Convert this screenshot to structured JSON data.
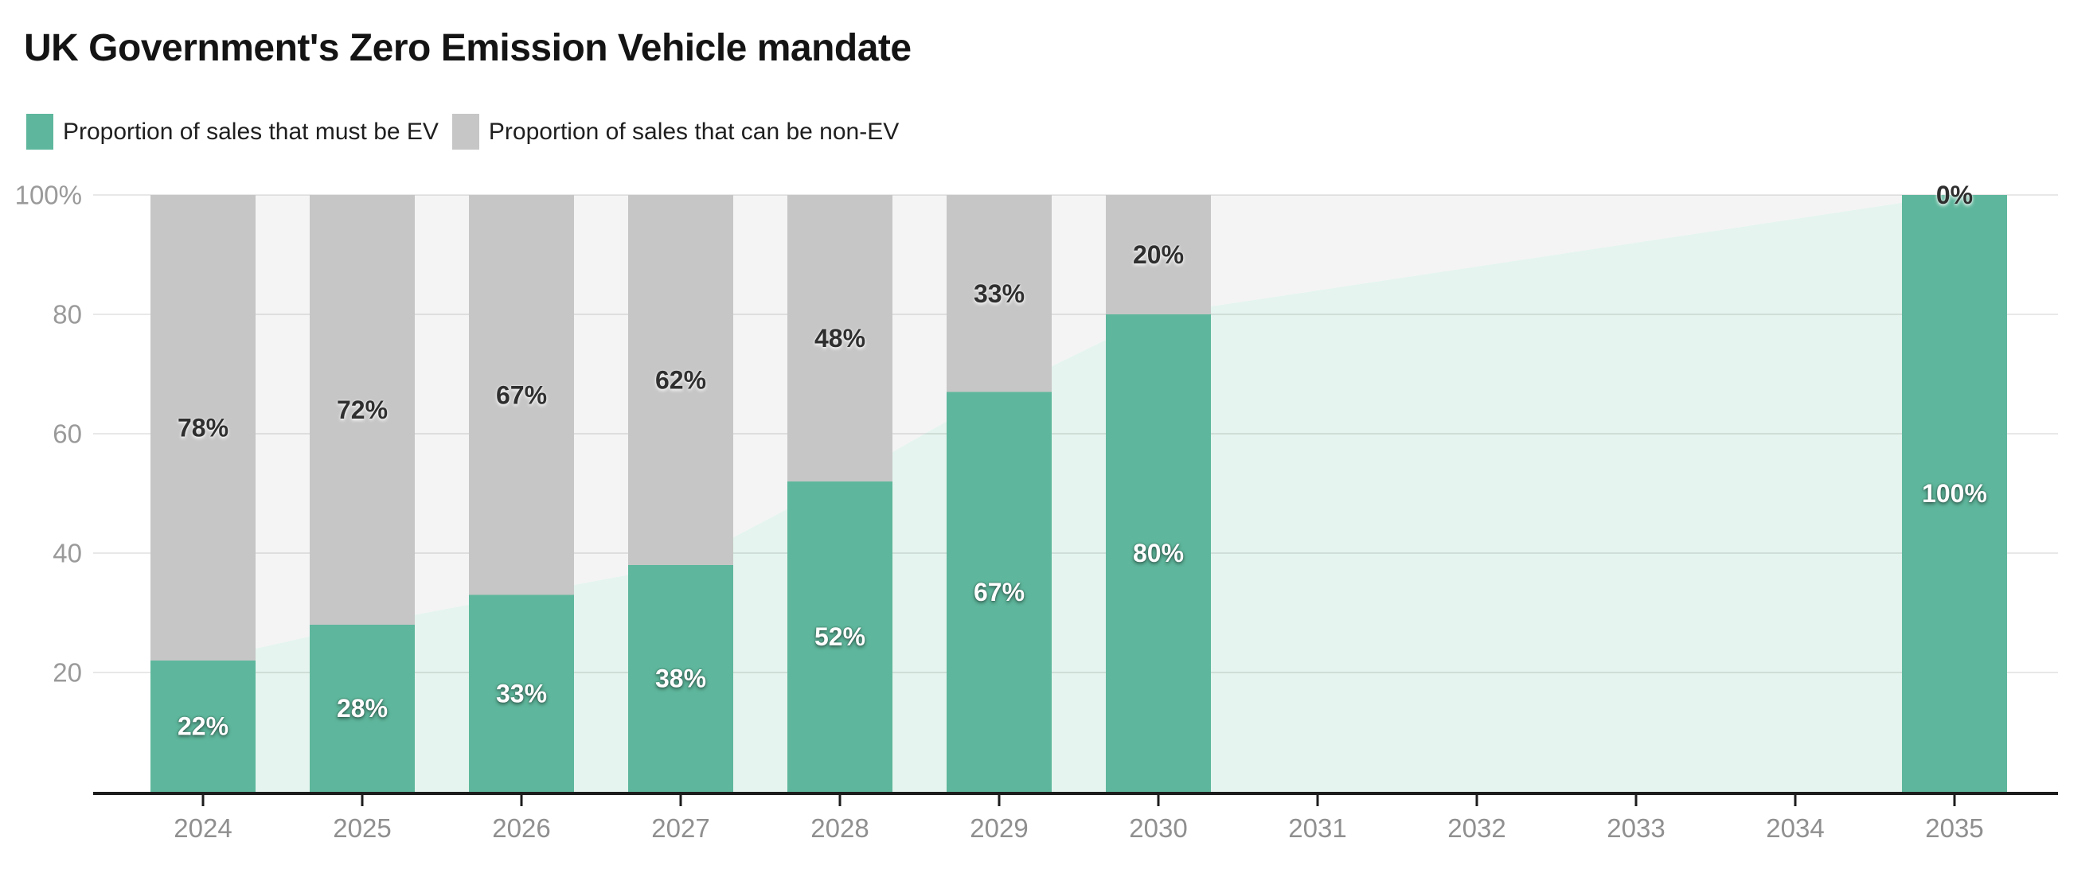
{
  "header": {
    "title": "UK Government's Zero Emission Vehicle mandate"
  },
  "legend": {
    "position": "top-left",
    "items": [
      {
        "label": "Proportion of sales that must be EV",
        "color": "#5EB79C"
      },
      {
        "label": "Proportion of sales that can be non-EV",
        "color": "#C6C6C6"
      }
    ]
  },
  "chart_data": {
    "type": "bar",
    "stacked": true,
    "units": "%",
    "title": "UK Government's Zero Emission Vehicle mandate",
    "categories": [
      "2024",
      "2025",
      "2026",
      "2027",
      "2028",
      "2029",
      "2030",
      "2031",
      "2032",
      "2033",
      "2034",
      "2035"
    ],
    "series": [
      {
        "name": "Proportion of sales that must be EV",
        "color": "#5EB79C",
        "values": [
          22,
          28,
          33,
          38,
          52,
          67,
          80,
          null,
          null,
          null,
          null,
          100
        ]
      },
      {
        "name": "Proportion of sales that can be non-EV",
        "color": "#C6C6C6",
        "values": [
          78,
          72,
          67,
          62,
          48,
          33,
          20,
          null,
          null,
          null,
          null,
          0
        ]
      }
    ],
    "bar_label_format": "{value}%",
    "area_trend": {
      "ev_values": [
        22,
        28,
        33,
        38,
        52,
        67,
        80,
        84,
        88,
        92,
        96,
        100
      ],
      "ev_fill": "#E5F4EE",
      "non_ev_fill": "#F4F4F5"
    },
    "y_axis": {
      "range": [
        0,
        100
      ],
      "grid": true,
      "ticks": [
        {
          "value": 100,
          "label": "100%"
        },
        {
          "value": 80,
          "label": "80"
        },
        {
          "value": 60,
          "label": "60"
        },
        {
          "value": 40,
          "label": "40"
        },
        {
          "value": 20,
          "label": "20"
        }
      ]
    },
    "x_axis": {
      "labels": [
        "2024",
        "2025",
        "2026",
        "2027",
        "2028",
        "2029",
        "2030",
        "2031",
        "2032",
        "2033",
        "2034",
        "2035"
      ]
    },
    "colors": {
      "ev_bar": "#5EB79C",
      "non_ev_bar": "#C6C6C6",
      "ev_area": "#E5F4EE",
      "non_ev_area": "#F4F4F5",
      "gridline": "#E0E0E0",
      "axis_line": "#1D1D1D",
      "tick_label": "#8F8F8F"
    }
  }
}
